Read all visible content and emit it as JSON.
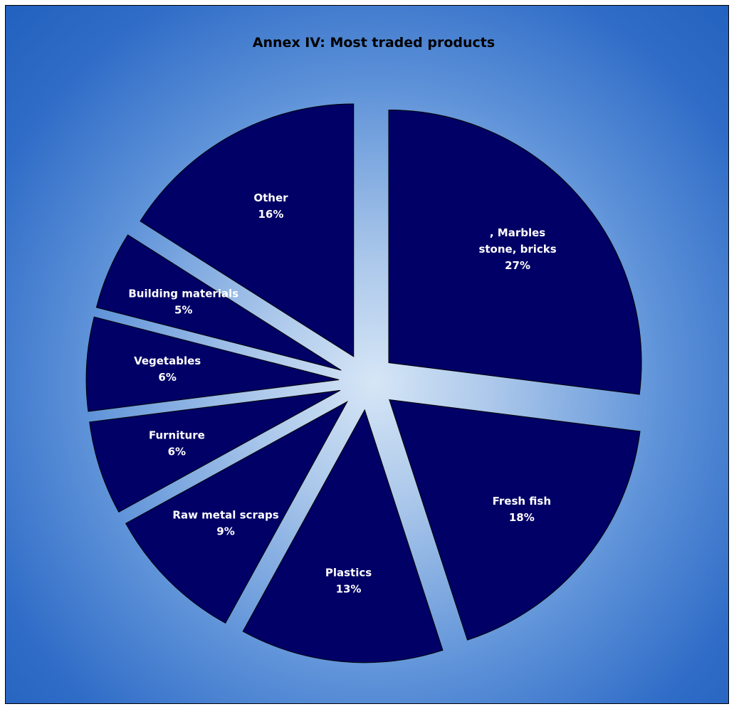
{
  "chart_data": {
    "type": "pie",
    "title": "Annex IV: Most traded products",
    "exploded": true,
    "color": "#000066",
    "background_colors": [
      "#d6e6f6",
      "#2261be"
    ],
    "slices": [
      {
        "label_lines": [
          ", Marbles",
          "stone, bricks"
        ],
        "value": 27,
        "percent_label": "27%"
      },
      {
        "label_lines": [
          "Fresh fish"
        ],
        "value": 18,
        "percent_label": "18%"
      },
      {
        "label_lines": [
          "Plastics"
        ],
        "value": 13,
        "percent_label": "13%"
      },
      {
        "label_lines": [
          "Raw metal scraps"
        ],
        "value": 9,
        "percent_label": "9%"
      },
      {
        "label_lines": [
          "Furniture"
        ],
        "value": 6,
        "percent_label": "6%"
      },
      {
        "label_lines": [
          "Vegetables"
        ],
        "value": 6,
        "percent_label": "6%"
      },
      {
        "label_lines": [
          "Building materials"
        ],
        "value": 5,
        "percent_label": "5%"
      },
      {
        "label_lines": [
          "Other"
        ],
        "value": 16,
        "percent_label": "16%"
      }
    ]
  }
}
